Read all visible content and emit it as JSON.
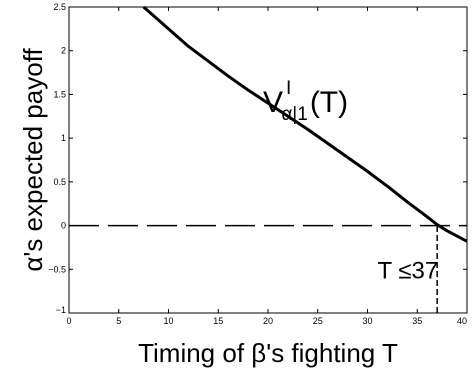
{
  "chart_data": {
    "type": "line",
    "title": "",
    "xlabel": "Timing of β's fighting T",
    "ylabel": "α's expected payoff",
    "xlim": [
      0,
      40
    ],
    "ylim": [
      -1,
      2.5
    ],
    "x_ticks": [
      0,
      5,
      10,
      15,
      20,
      25,
      30,
      35,
      40
    ],
    "x_tick_labels": [
      "0",
      "5",
      "10",
      "15",
      "20",
      "25",
      "30",
      "35",
      "40"
    ],
    "y_ticks": [
      -1,
      -0.5,
      0,
      0.5,
      1,
      1.5,
      2,
      2.5
    ],
    "y_tick_labels": [
      "−1",
      "−0.5",
      "0",
      "0.5",
      "1",
      "1.5",
      "2",
      "2.5"
    ],
    "grid": false,
    "series": [
      {
        "name": "",
        "style": "solid",
        "color": "#000000",
        "x": [
          7.5,
          9,
          10,
          11,
          12,
          14,
          16,
          18,
          20,
          22,
          24,
          26,
          28,
          30,
          32,
          34,
          36,
          37,
          38,
          39,
          40
        ],
        "y": [
          2.5,
          2.35,
          2.25,
          2.15,
          2.05,
          1.88,
          1.71,
          1.55,
          1.4,
          1.25,
          1.1,
          0.94,
          0.78,
          0.62,
          0.45,
          0.27,
          0.1,
          0.01,
          -0.06,
          -0.12,
          -0.18
        ]
      },
      {
        "name": "",
        "style": "dashed",
        "color": "#000000",
        "x": [
          0,
          40
        ],
        "y": [
          0,
          0
        ]
      }
    ],
    "vertical_line": {
      "x": 37,
      "y_from": -1,
      "y_to": 0,
      "style": "dashed"
    },
    "curve_label": {
      "base": "V",
      "subscript": "α|1",
      "superscript": "I",
      "argument": "(T)",
      "x": 19.5,
      "y": 1.3
    },
    "threshold_label": {
      "text": "T ≤37",
      "x": 31,
      "y": -0.5
    }
  }
}
